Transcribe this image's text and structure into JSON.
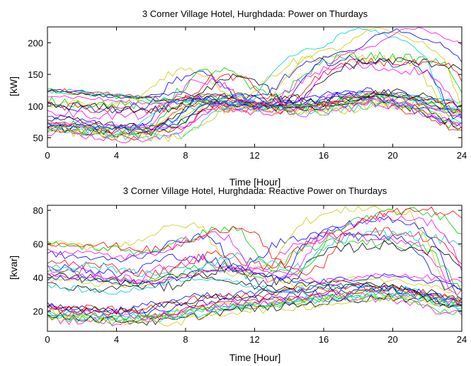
{
  "chart_data": [
    {
      "type": "line",
      "title": "3 Corner Village Hotel, Hurghdada: Power on Thurdays",
      "xlabel": "Time [Hour]",
      "ylabel": "[kW]",
      "xlim": [
        0,
        24
      ],
      "ylim": [
        35,
        225
      ],
      "xticks": [
        "0",
        "4",
        "8",
        "12",
        "16",
        "20",
        "24"
      ],
      "yticks": [
        "50",
        "100",
        "150",
        "200"
      ],
      "grid": false,
      "legend": "none",
      "series_colors": [
        "#0000ff",
        "#ff00ff",
        "#00cc00",
        "#ff0000",
        "#000000",
        "#00cccc",
        "#cccc00"
      ],
      "series_count": 30,
      "profile_templates": [
        {
          "base": [
            70,
            66,
            62,
            60,
            58,
            58,
            60,
            75,
            100,
            108,
            105,
            100,
            102,
            100,
            98,
            100,
            104,
            110,
            115,
            112,
            108,
            100,
            95,
            80,
            70
          ],
          "amp": 22,
          "count": 14
        },
        {
          "base": [
            125,
            122,
            120,
            118,
            115,
            112,
            110,
            112,
            115,
            118,
            110,
            104,
            102,
            100,
            100,
            102,
            108,
            115,
            120,
            118,
            115,
            112,
            108,
            100,
            90
          ],
          "amp": 12,
          "count": 6
        },
        {
          "base": [
            100,
            98,
            96,
            95,
            94,
            95,
            100,
            120,
            145,
            150,
            145,
            120,
            110,
            115,
            140,
            160,
            168,
            170,
            172,
            170,
            168,
            166,
            162,
            130,
            80
          ],
          "amp": 24,
          "count": 6
        },
        {
          "base": [
            70,
            68,
            66,
            64,
            62,
            62,
            64,
            80,
            100,
            105,
            100,
            98,
            100,
            110,
            150,
            175,
            185,
            190,
            210,
            220,
            215,
            205,
            195,
            170,
            95
          ],
          "amp": 10,
          "count": 4
        }
      ]
    },
    {
      "type": "line",
      "title": "3 Corner Village Hotel, Hurghdada: Reactive Power on Thurdays",
      "xlabel": "Time [Hour]",
      "ylabel": "[kvar]",
      "xlim": [
        0,
        24
      ],
      "ylim": [
        8,
        83
      ],
      "xticks": [
        "0",
        "4",
        "8",
        "12",
        "16",
        "20",
        "24"
      ],
      "yticks": [
        "20",
        "40",
        "60",
        "80"
      ],
      "grid": false,
      "legend": "none",
      "series_colors": [
        "#0000ff",
        "#ff00ff",
        "#00cc00",
        "#ff0000",
        "#000000",
        "#00cccc",
        "#cccc00"
      ],
      "series_count": 30,
      "profile_templates": [
        {
          "base": [
            20,
            19,
            18,
            18,
            17,
            17,
            18,
            20,
            22,
            24,
            25,
            25,
            26,
            27,
            28,
            29,
            30,
            31,
            32,
            31,
            30,
            29,
            28,
            25,
            22
          ],
          "amp": 8,
          "count": 14
        },
        {
          "base": [
            45,
            44,
            43,
            42,
            40,
            38,
            40,
            45,
            48,
            50,
            48,
            45,
            42,
            45,
            55,
            60,
            62,
            63,
            64,
            63,
            62,
            60,
            58,
            45,
            30
          ],
          "amp": 10,
          "count": 6
        },
        {
          "base": [
            58,
            57,
            56,
            55,
            54,
            55,
            58,
            62,
            66,
            68,
            66,
            50,
            42,
            40,
            45,
            62,
            70,
            74,
            76,
            78,
            78,
            76,
            74,
            60,
            30
          ],
          "amp": 8,
          "count": 5
        },
        {
          "base": [
            38,
            37,
            36,
            35,
            34,
            35,
            37,
            40,
            42,
            43,
            42,
            40,
            38,
            36,
            35,
            36,
            37,
            38,
            39,
            38,
            37,
            36,
            35,
            30,
            25
          ],
          "amp": 6,
          "count": 5
        }
      ]
    }
  ]
}
